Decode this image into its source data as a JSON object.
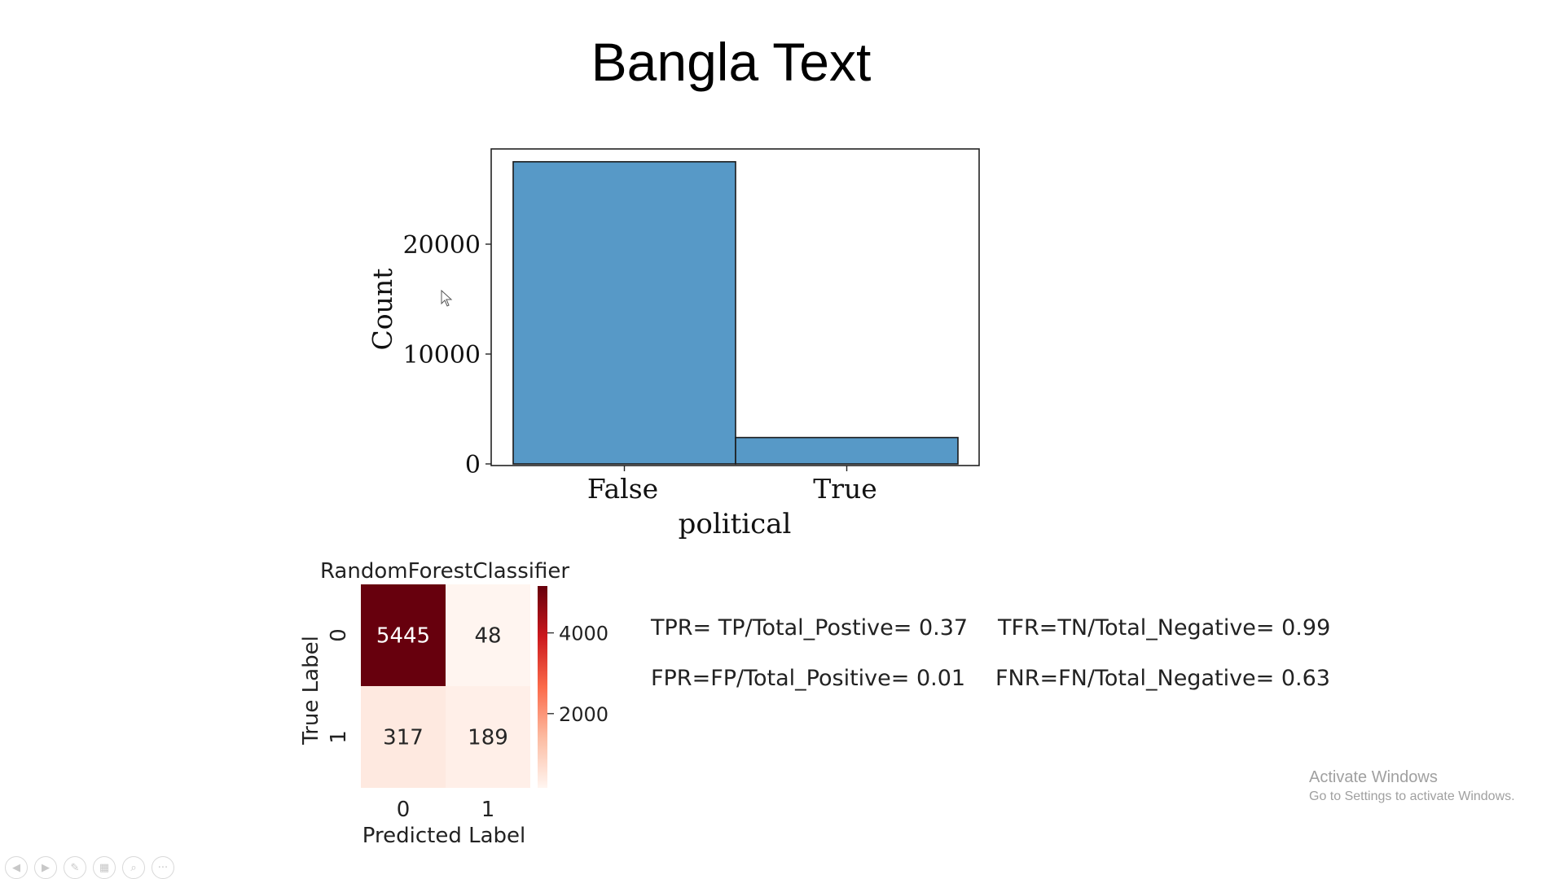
{
  "slide": {
    "title": "Bangla Text"
  },
  "chart_data": [
    {
      "type": "bar",
      "categories": [
        "False",
        "True"
      ],
      "values": [
        27500,
        2400
      ],
      "xlabel": "political",
      "ylabel": "Count",
      "yticks": [
        "0",
        "10000",
        "20000"
      ],
      "ylim": [
        0,
        28800
      ],
      "color": "#5799c7",
      "grid": false
    },
    {
      "type": "heatmap",
      "title": "RandomForestClassifier",
      "xlabel": "Predicted Label",
      "ylabel": "True Label",
      "x_ticks": [
        "0",
        "1"
      ],
      "y_ticks": [
        "0",
        "1"
      ],
      "matrix": [
        [
          5445,
          48
        ],
        [
          317,
          189
        ]
      ],
      "colorbar_ticks": [
        "4000",
        "2000"
      ],
      "colorbar_values": [
        4000,
        2000
      ],
      "colormap": "Reds",
      "vmin": 48,
      "vmax": 5445
    }
  ],
  "metrics": {
    "tpr": "TPR= TP/Total_Postive= 0.37",
    "tfr": "TFR=TN/Total_Negative= 0.99",
    "fpr": "FPR=FP/Total_Positive= 0.01",
    "fnr": "FNR=FN/Total_Negative= 0.63"
  },
  "watermark": {
    "title": "Activate Windows",
    "subtitle": "Go to Settings to activate Windows."
  },
  "toolbar": {
    "buttons": [
      {
        "name": "previous-slide-button",
        "glyph": "◀"
      },
      {
        "name": "next-slide-button",
        "glyph": "▶"
      },
      {
        "name": "pen-button",
        "glyph": "✎"
      },
      {
        "name": "see-all-slides-button",
        "glyph": "▦"
      },
      {
        "name": "zoom-button",
        "glyph": "⌕"
      },
      {
        "name": "more-options-button",
        "glyph": "···"
      }
    ]
  }
}
